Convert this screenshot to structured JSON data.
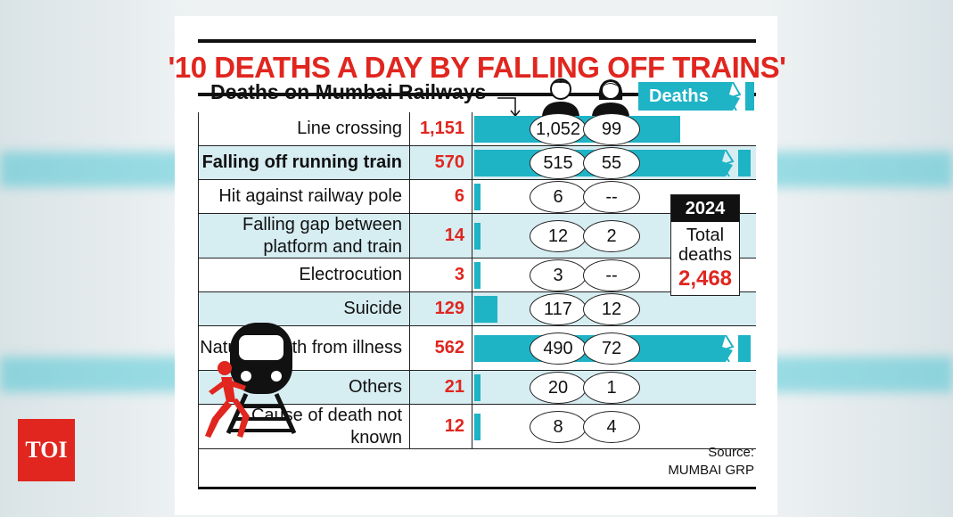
{
  "chart_data": {
    "type": "table",
    "title": "'10 DEATHS A DAY BY FALLING OFF TRAINS'",
    "subtitle": "Deaths on Mumbai Railways",
    "bar_legend": "Deaths",
    "rows": [
      {
        "cause": "Line crossing",
        "total": 1151,
        "total_text": "1,151",
        "male": "1,052",
        "female": "99",
        "bold": false,
        "alt": false,
        "break": false
      },
      {
        "cause": "Falling off running train",
        "total": 570,
        "total_text": "570",
        "male": "515",
        "female": "55",
        "bold": true,
        "alt": true,
        "break": true
      },
      {
        "cause": "Hit against railway pole",
        "total": 6,
        "total_text": "6",
        "male": "6",
        "female": "--",
        "bold": false,
        "alt": false,
        "break": false
      },
      {
        "cause": "Falling gap between platform and train",
        "total": 14,
        "total_text": "14",
        "male": "12",
        "female": "2",
        "bold": false,
        "alt": true,
        "break": false
      },
      {
        "cause": "Electrocution",
        "total": 3,
        "total_text": "3",
        "male": "3",
        "female": "--",
        "bold": false,
        "alt": false,
        "break": false
      },
      {
        "cause": "Suicide",
        "total": 129,
        "total_text": "129",
        "male": "117",
        "female": "12",
        "bold": false,
        "alt": true,
        "break": false
      },
      {
        "cause": "Natural death from illness",
        "total": 562,
        "total_text": "562",
        "male": "490",
        "female": "72",
        "bold": false,
        "alt": false,
        "break": true
      },
      {
        "cause": "Others",
        "total": 21,
        "total_text": "21",
        "male": "20",
        "female": "1",
        "bold": false,
        "alt": true,
        "break": false
      },
      {
        "cause": "Cause of death not known",
        "total": 12,
        "total_text": "12",
        "male": "8",
        "female": "4",
        "bold": false,
        "alt": false,
        "break": false
      }
    ],
    "summary": {
      "year": "2024",
      "label": "Total deaths",
      "value": "2,468"
    },
    "source": "Source: MUMBAI GRP"
  },
  "brand": {
    "logo_text": "TOI"
  },
  "icons": {
    "male": "man-icon",
    "female": "woman-icon",
    "train": "train-icon",
    "person": "running-person-icon"
  },
  "colors": {
    "bar": "#1fb3c6",
    "accent": "#e0261f",
    "alt_row": "#d6edf2"
  }
}
